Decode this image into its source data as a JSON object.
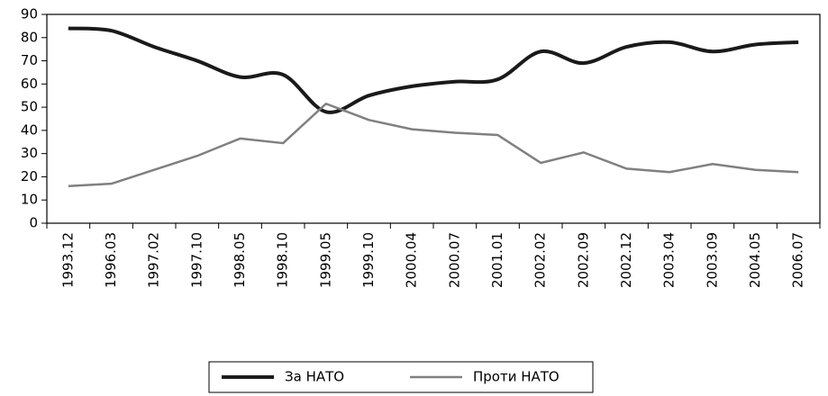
{
  "chart_data": {
    "type": "line",
    "categories": [
      "1993.12",
      "1996.03",
      "1997.02",
      "1997.10",
      "1998.05",
      "1998.10",
      "1999.05",
      "1999.10",
      "2000.04",
      "2000.07",
      "2001.01",
      "2002.02",
      "2002.09",
      "2002.12",
      "2003.04",
      "2003.09",
      "2004.05",
      "2006.07"
    ],
    "series": [
      {
        "name": "За НАТО",
        "color": "#1a1a1a",
        "smooth": true,
        "values": [
          84,
          83,
          76,
          70,
          63,
          64,
          48,
          55,
          59,
          61,
          62,
          74,
          69,
          76,
          78,
          74,
          77,
          78
        ]
      },
      {
        "name": "Проти НАТО",
        "color": "#808080",
        "smooth": false,
        "values": [
          16,
          17,
          23,
          29,
          36.5,
          34.5,
          51.5,
          44.5,
          40.5,
          39,
          38,
          26,
          30.5,
          23.5,
          22,
          25.5,
          23,
          22
        ]
      }
    ],
    "ylim": [
      0,
      90
    ],
    "yticks": [
      0,
      10,
      20,
      30,
      40,
      50,
      60,
      70,
      80,
      90
    ],
    "grid": false,
    "legend": "bottom"
  }
}
